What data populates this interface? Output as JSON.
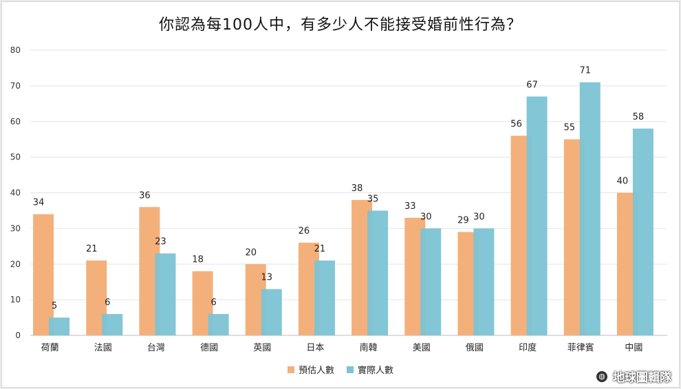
{
  "chart_data": {
    "type": "bar",
    "title": "你認為每100人中，有多少人不能接受婚前性行為？",
    "categories": [
      "荷蘭",
      "法國",
      "台灣",
      "德國",
      "英國",
      "日本",
      "南韓",
      "美國",
      "俄國",
      "印度",
      "菲律賓",
      "中國"
    ],
    "series": [
      {
        "name": "預估人數",
        "color": "#f4b07a",
        "values": [
          34,
          21,
          36,
          18,
          20,
          26,
          38,
          33,
          29,
          56,
          55,
          40
        ]
      },
      {
        "name": "實際人數",
        "color": "#7cc3d4",
        "values": [
          5,
          6,
          23,
          6,
          13,
          21,
          35,
          30,
          30,
          67,
          71,
          58
        ]
      }
    ],
    "ylim": [
      0,
      80
    ],
    "yticks": [
      0,
      10,
      20,
      30,
      40,
      50,
      60,
      70,
      80
    ],
    "grid": true,
    "legend_position": "bottom-center"
  },
  "watermark": {
    "text": "地球圖輯隊"
  }
}
